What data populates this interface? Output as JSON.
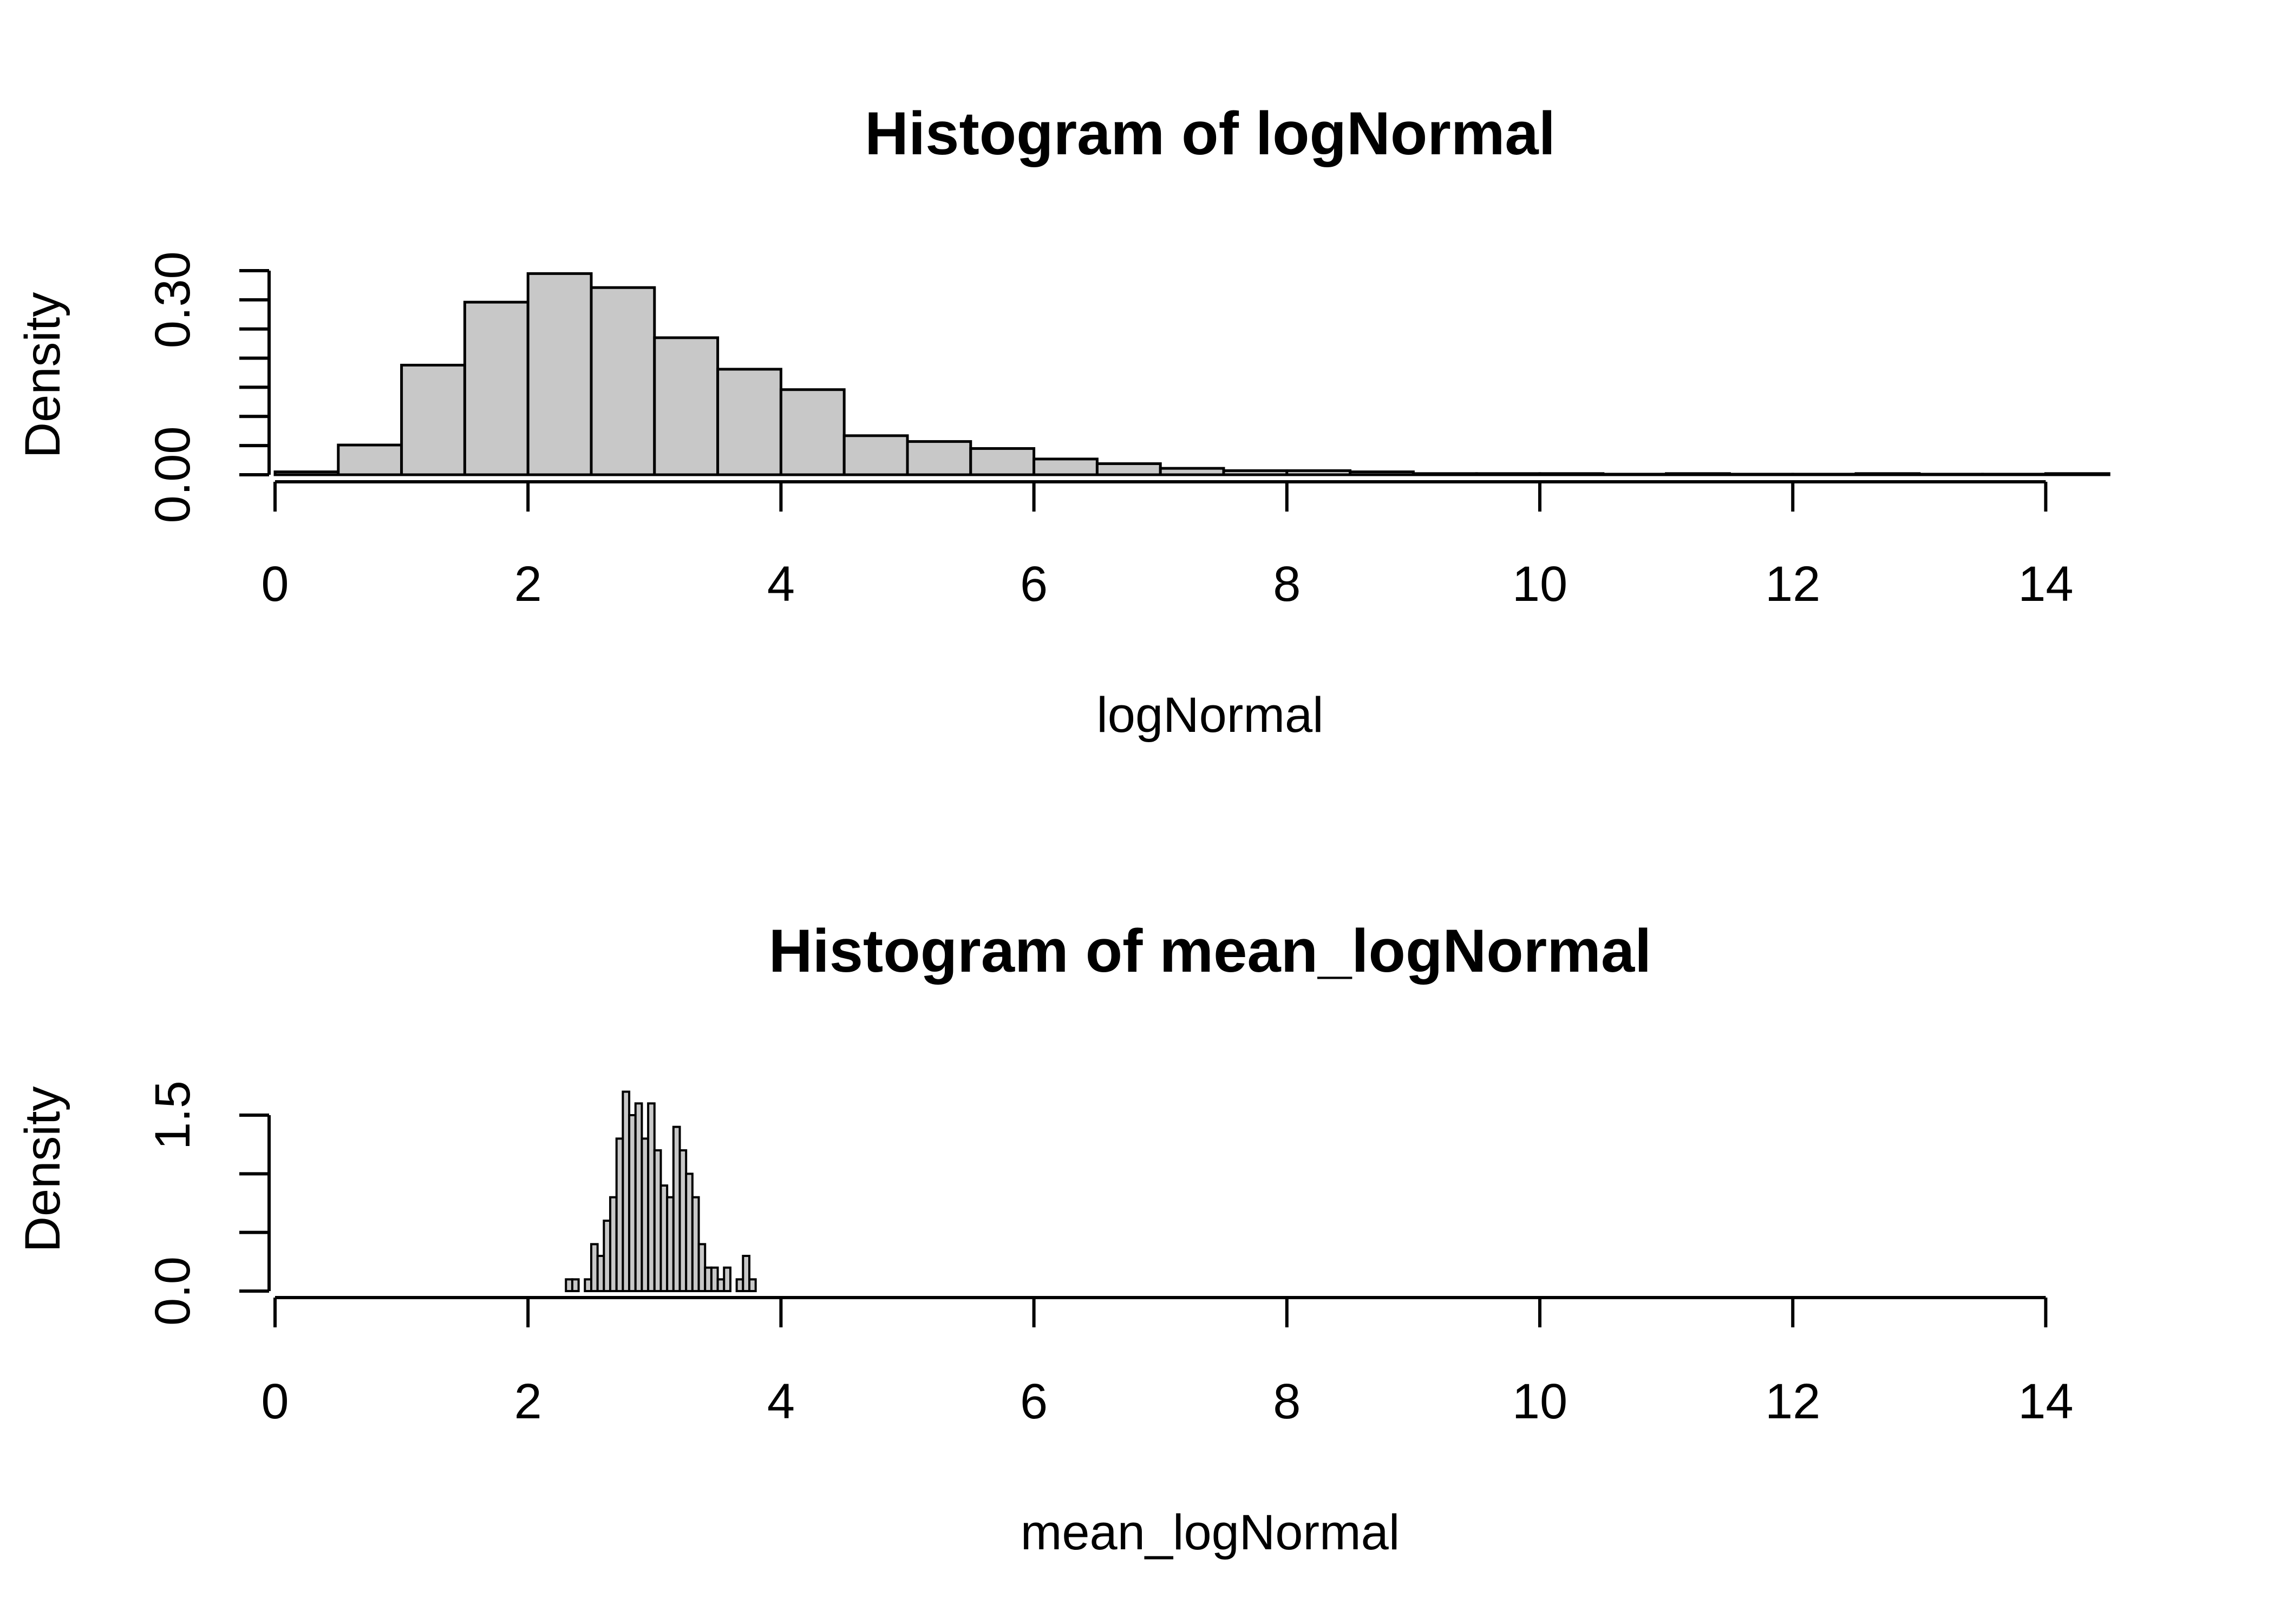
{
  "chart_data": [
    {
      "type": "bar",
      "title": "Histogram of logNormal",
      "xlabel": "logNormal",
      "ylabel": "Density",
      "xlim": [
        0,
        14.5
      ],
      "ylim": [
        0,
        0.35
      ],
      "x_ticks": [
        0,
        2,
        4,
        6,
        8,
        10,
        12,
        14
      ],
      "y_ticks": [
        0.0,
        0.05,
        0.1,
        0.15,
        0.2,
        0.25,
        0.3,
        0.35
      ],
      "y_tick_labels": [
        "0.00",
        "",
        "",
        "",
        "",
        "",
        "0.30",
        ""
      ],
      "bin_width": 0.5,
      "bins_start": [
        0,
        0.5,
        1.0,
        1.5,
        2.0,
        2.5,
        3.0,
        3.5,
        4.0,
        4.5,
        5.0,
        5.5,
        6.0,
        6.5,
        7.0,
        7.5,
        8.0,
        8.5,
        9.0,
        9.5,
        10.0,
        10.5,
        11.0,
        11.5,
        12.0,
        12.5,
        13.0,
        13.5,
        14.0
      ],
      "values": [
        0.005,
        0.051,
        0.188,
        0.296,
        0.345,
        0.321,
        0.235,
        0.181,
        0.146,
        0.067,
        0.057,
        0.045,
        0.027,
        0.019,
        0.011,
        0.007,
        0.007,
        0.005,
        0.002,
        0.002,
        0.002,
        0.001,
        0.002,
        0.001,
        0.001,
        0.002,
        0.001,
        0.001,
        0.002
      ]
    },
    {
      "type": "bar",
      "title": "Histogram of mean_logNormal",
      "xlabel": "mean_logNormal",
      "ylabel": "Density",
      "xlim": [
        0,
        14.5
      ],
      "ylim": [
        0,
        1.5
      ],
      "x_ticks": [
        0,
        2,
        4,
        6,
        8,
        10,
        12,
        14
      ],
      "y_ticks": [
        0.0,
        0.5,
        1.0,
        1.5
      ],
      "y_tick_labels": [
        "0.0",
        "",
        "",
        "1.5"
      ],
      "bin_width": 0.05,
      "bins_start": [
        2.3,
        2.35,
        2.4,
        2.45,
        2.5,
        2.55,
        2.6,
        2.65,
        2.7,
        2.75,
        2.8,
        2.85,
        2.9,
        2.95,
        3.0,
        3.05,
        3.1,
        3.15,
        3.2,
        3.25,
        3.3,
        3.35,
        3.4,
        3.45,
        3.5,
        3.55,
        3.6,
        3.65,
        3.7,
        3.75
      ],
      "values": [
        0.1,
        0.1,
        0.0,
        0.1,
        0.4,
        0.3,
        0.6,
        0.8,
        1.3,
        1.7,
        1.5,
        1.6,
        1.3,
        1.6,
        1.2,
        0.9,
        0.8,
        1.4,
        1.2,
        1.0,
        0.8,
        0.4,
        0.2,
        0.2,
        0.1,
        0.2,
        0.0,
        0.1,
        0.3,
        0.1
      ]
    }
  ]
}
